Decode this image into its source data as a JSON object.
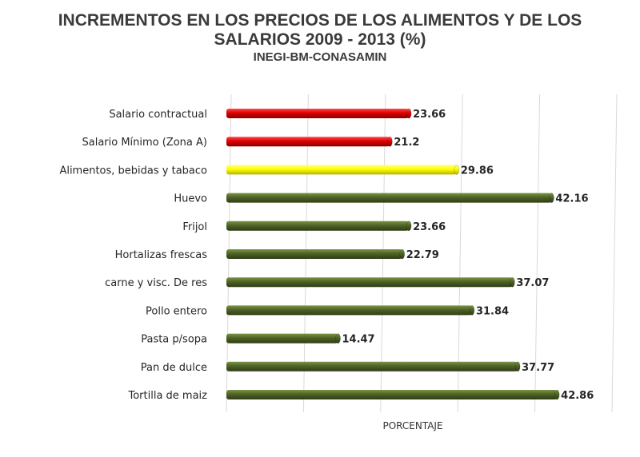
{
  "header": {
    "title_line1": "INCREMENTOS EN LOS PRECIOS DE LOS ALIMENTOS Y DE LOS",
    "title_line2": "SALARIOS 2009 - 2013 (%)",
    "subtitle": "INEGI-BM-CONASAMIN"
  },
  "chart_data": {
    "type": "bar",
    "orientation": "horizontal",
    "title": "INCREMENTOS EN LOS PRECIOS DE LOS ALIMENTOS Y DE LOS SALARIOS 2009 - 2013 (%)",
    "subtitle": "INEGI-BM-CONASAMIN",
    "xlabel": "PORCENTAJE",
    "ylabel": "",
    "xlim": [
      0,
      50
    ],
    "grid": true,
    "legend": "none",
    "categories": [
      "Salario contractual",
      "Salario Mínimo (Zona A)",
      "Alimentos, bebidas y tabaco",
      "Huevo",
      "Frijol",
      "Hortalizas frescas",
      "carne y visc. De res",
      "Pollo entero",
      "Pasta p/sopa",
      "Pan de dulce",
      "Tortilla de maiz"
    ],
    "values": [
      23.66,
      21.2,
      29.86,
      42.16,
      23.66,
      22.79,
      37.07,
      31.84,
      14.47,
      37.77,
      42.86
    ],
    "value_labels": [
      "23.66",
      "21.2",
      "29.86",
      "42.16",
      "23.66",
      "22.79",
      "37.07",
      "31.84",
      "14.47",
      "37.77",
      "42.86"
    ],
    "colors": [
      "#e00000",
      "#cc0000",
      "#ffff00",
      "#4f6228",
      "#4f6228",
      "#4f6228",
      "#4f6228",
      "#4f6228",
      "#4f6228",
      "#4f6228",
      "#4f6228"
    ]
  }
}
